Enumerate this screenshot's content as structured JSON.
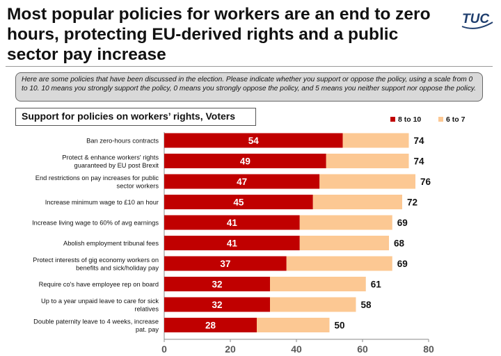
{
  "title": "Most popular policies for workers are an end to zero hours, protecting EU-derived rights and a public sector pay increase",
  "logo_text": "TUC",
  "intro": "Here are some policies that have been discussed in the election. Please indicate whether you support or oppose the policy, using a scale from 0 to 10. 10 means you strongly support the policy, 0 means you strongly oppose the policy, and 5 means you neither support nor oppose the policy.",
  "colors": {
    "dark": "#c00000",
    "light": "#fcc893",
    "logo": "#1f3e6e"
  },
  "chart_data": {
    "type": "bar",
    "orientation": "horizontal",
    "stacked": true,
    "title": "Support for policies on workers’ rights, Voters",
    "categories": [
      [
        "Ban zero-hours contracts"
      ],
      [
        "Protect & enhance workers' rights",
        "guaranteed by EU post Brexit"
      ],
      [
        "End restrictions on pay increases for public",
        "sector workers"
      ],
      [
        "Increase minimum wage to £10 an hour"
      ],
      [
        "Increase living wage to 60% of avg earnings"
      ],
      [
        "Abolish employment tribunal fees"
      ],
      [
        "Protect interests of gig economy workers on",
        "benefits and sick/holiday pay"
      ],
      [
        "Require co's have employee rep on board"
      ],
      [
        "Up to a year unpaid leave to care for sick",
        "relatives"
      ],
      [
        "Double paternity leave to 4 weeks, increase",
        "pat. pay"
      ]
    ],
    "series": [
      {
        "name": "8 to 10",
        "values": [
          54,
          49,
          47,
          45,
          41,
          41,
          37,
          32,
          32,
          28
        ]
      },
      {
        "name": "6 to 7",
        "values": [
          20,
          25,
          29,
          27,
          28,
          27,
          32,
          29,
          26,
          22
        ]
      }
    ],
    "totals": [
      74,
      74,
      76,
      72,
      69,
      68,
      69,
      61,
      58,
      50
    ],
    "xlim": [
      0,
      80
    ],
    "xticks": [
      0,
      20,
      40,
      60,
      80
    ],
    "legend_position": "top-right"
  }
}
